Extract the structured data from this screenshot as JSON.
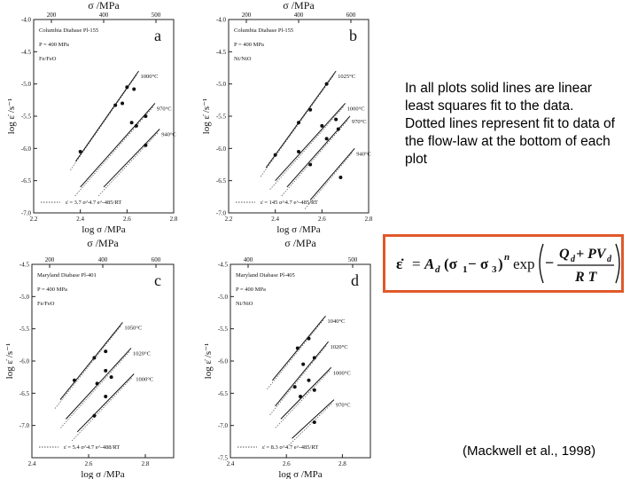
{
  "caption": "In all plots solid lines are linear least squares fit to the data. Dotted lines represent fit to data of the flow-law at the bottom of each plot",
  "equation": {
    "lhs": "ε̇",
    "eq": "=",
    "A": "A",
    "A_sub": "d",
    "sig1": "(σ",
    "sig1_sub": "1",
    "minus": " − σ",
    "sig3_sub": "3",
    "close": ")",
    "n": "n",
    "exp": "exp",
    "num": "Q",
    "num_sub": "d",
    "num_plus": " + PV",
    "num_sub2": "d",
    "den": "R T",
    "minus_sign": "−"
  },
  "citation": "(Mackwell et al., 1998)",
  "chart_data": [
    {
      "type": "scatter",
      "panel_letter": "a",
      "material": "Columbia Diabase Pl-155",
      "pressure": "P = 400 MPa",
      "buffer": "Fe/FeO",
      "flow_law": "ε̇ = 3.7 σ^4.7 e^-485/RT",
      "xlabel": "log σ /MPa",
      "ylabel": "log ε̇ /s⁻¹",
      "top_label": "σ /MPa",
      "xlim": [
        2.2,
        2.8
      ],
      "ylim": [
        -7.0,
        -4.0
      ],
      "x_ticks": [
        "2.2",
        "2.4",
        "2.6",
        "2.8"
      ],
      "y_ticks": [
        "-4.0",
        "-4.5",
        "-5.0",
        "-5.5",
        "-6.0",
        "-6.5",
        "-7.0"
      ],
      "top_ticks": [
        "200",
        "400",
        "500"
      ],
      "series": [
        {
          "name": "1000°C",
          "points": [
            [
              2.4,
              -6.05
            ],
            [
              2.55,
              -5.33
            ],
            [
              2.58,
              -5.3
            ],
            [
              2.6,
              -5.05
            ],
            [
              2.63,
              -5.08
            ]
          ],
          "fit": [
            [
              2.38,
              -6.2
            ],
            [
              2.65,
              -4.8
            ]
          ]
        },
        {
          "name": "970°C",
          "points": [
            [
              2.62,
              -5.6
            ],
            [
              2.64,
              -5.65
            ],
            [
              2.68,
              -5.5
            ]
          ],
          "fit": [
            [
              2.4,
              -6.6
            ],
            [
              2.72,
              -5.3
            ]
          ]
        },
        {
          "name": "940°C",
          "points": [
            [
              2.68,
              -5.95
            ]
          ],
          "fit": [
            [
              2.5,
              -6.6
            ],
            [
              2.74,
              -5.7
            ]
          ]
        }
      ]
    },
    {
      "type": "scatter",
      "panel_letter": "b",
      "material": "Columbia Diabase Pl-155",
      "pressure": "P = 400 MPa",
      "buffer": "Ni/NiO",
      "flow_law": "ε̇ = 145 σ^4.7 e^-485/RT",
      "xlabel": "log σ /MPa",
      "ylabel": "log ε̇ /s⁻¹",
      "top_label": "σ /MPa",
      "xlim": [
        2.2,
        2.8
      ],
      "ylim": [
        -7.0,
        -4.0
      ],
      "x_ticks": [
        "2.2",
        "2.4",
        "2.6",
        "2.8"
      ],
      "y_ticks": [
        "-4.0",
        "-4.5",
        "-5.0",
        "-5.5",
        "-6.0",
        "-6.5",
        "-7.0"
      ],
      "top_ticks": [
        "200",
        "400",
        "600"
      ],
      "series": [
        {
          "name": "1025°C",
          "points": [
            [
              2.4,
              -6.1
            ],
            [
              2.5,
              -5.6
            ],
            [
              2.55,
              -5.4
            ],
            [
              2.62,
              -5.0
            ]
          ],
          "fit": [
            [
              2.36,
              -6.3
            ],
            [
              2.66,
              -4.8
            ]
          ]
        },
        {
          "name": "1000°C",
          "points": [
            [
              2.5,
              -6.05
            ],
            [
              2.6,
              -5.65
            ],
            [
              2.66,
              -5.55
            ]
          ],
          "fit": [
            [
              2.4,
              -6.5
            ],
            [
              2.7,
              -5.3
            ]
          ]
        },
        {
          "name": "970°C",
          "points": [
            [
              2.55,
              -6.25
            ],
            [
              2.62,
              -5.85
            ],
            [
              2.67,
              -5.7
            ]
          ],
          "fit": [
            [
              2.45,
              -6.6
            ],
            [
              2.72,
              -5.5
            ]
          ]
        },
        {
          "name": "940°C",
          "points": [
            [
              2.68,
              -6.45
            ]
          ],
          "fit": [
            [
              2.55,
              -6.8
            ],
            [
              2.74,
              -6.0
            ]
          ]
        }
      ]
    },
    {
      "type": "scatter",
      "panel_letter": "c",
      "material": "Maryland Diabase Pl-401",
      "pressure": "P = 400 MPa",
      "buffer": "Fe/FeO",
      "flow_law": "ε̇ = 5.4 σ^4.7 e^-488/RT",
      "xlabel": "log σ /MPa",
      "ylabel": "log ε̇ /s⁻¹",
      "top_label": "σ /MPa",
      "xlim": [
        2.4,
        2.9
      ],
      "ylim": [
        -7.5,
        -4.5
      ],
      "x_ticks": [
        "2.4",
        "2.6",
        "2.8"
      ],
      "y_ticks": [
        "-4.5",
        "-5.0",
        "-5.5",
        "-6.0",
        "-6.5",
        "-7.0"
      ],
      "top_ticks": [
        "200",
        "400",
        "600"
      ],
      "series": [
        {
          "name": "1050°C",
          "points": [
            [
              2.55,
              -6.3
            ],
            [
              2.62,
              -5.95
            ],
            [
              2.66,
              -5.85
            ]
          ],
          "fit": [
            [
              2.5,
              -6.6
            ],
            [
              2.72,
              -5.4
            ]
          ]
        },
        {
          "name": "1020°C",
          "points": [
            [
              2.63,
              -6.35
            ],
            [
              2.66,
              -6.15
            ],
            [
              2.68,
              -6.25
            ]
          ],
          "fit": [
            [
              2.52,
              -6.9
            ],
            [
              2.75,
              -5.8
            ]
          ]
        },
        {
          "name": "1000°C",
          "points": [
            [
              2.62,
              -6.85
            ],
            [
              2.66,
              -6.55
            ]
          ],
          "fit": [
            [
              2.56,
              -7.1
            ],
            [
              2.76,
              -6.2
            ]
          ]
        }
      ]
    },
    {
      "type": "scatter",
      "panel_letter": "d",
      "material": "Maryland Diabase Pl-405",
      "pressure": "P = 400 MPa",
      "buffer": "Ni/NiO",
      "flow_law": "ε̇ = 8.3 σ^4.7 e^-485/RT",
      "xlabel": "log σ /MPa",
      "ylabel": "log ε̇ /s⁻¹",
      "top_label": "σ /MPa",
      "xlim": [
        2.4,
        2.9
      ],
      "ylim": [
        -7.5,
        -4.5
      ],
      "x_ticks": [
        "2.4",
        "2.6",
        "2.8"
      ],
      "y_ticks": [
        "-4.5",
        "-5.0",
        "-5.5",
        "-6.0",
        "-6.5",
        "-7.0",
        "-7.5"
      ],
      "top_ticks": [
        "400",
        "500"
      ],
      "series": [
        {
          "name": "1040°C",
          "points": [
            [
              2.64,
              -5.8
            ],
            [
              2.68,
              -5.65
            ]
          ],
          "fit": [
            [
              2.55,
              -6.3
            ],
            [
              2.74,
              -5.3
            ]
          ]
        },
        {
          "name": "1020°C",
          "points": [
            [
              2.63,
              -6.4
            ],
            [
              2.66,
              -6.05
            ],
            [
              2.7,
              -5.95
            ]
          ],
          "fit": [
            [
              2.56,
              -6.7
            ],
            [
              2.75,
              -5.7
            ]
          ]
        },
        {
          "name": "1000°C",
          "points": [
            [
              2.65,
              -6.55
            ],
            [
              2.68,
              -6.3
            ],
            [
              2.7,
              -6.45
            ]
          ],
          "fit": [
            [
              2.58,
              -6.9
            ],
            [
              2.76,
              -6.1
            ]
          ]
        },
        {
          "name": "970°C",
          "points": [
            [
              2.7,
              -6.95
            ]
          ],
          "fit": [
            [
              2.62,
              -7.2
            ],
            [
              2.77,
              -6.6
            ]
          ]
        }
      ]
    }
  ]
}
